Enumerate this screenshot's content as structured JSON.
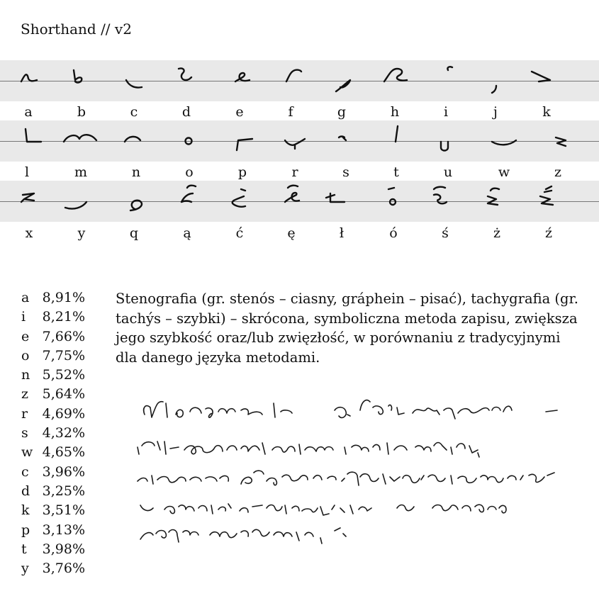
{
  "title": "Shorthand // v2",
  "rows": [
    [
      "a",
      "b",
      "c",
      "d",
      "e",
      "f",
      "g",
      "h",
      "i",
      "j",
      "k"
    ],
    [
      "l",
      "m",
      "n",
      "o",
      "p",
      "r",
      "s",
      "t",
      "u",
      "w",
      "z"
    ],
    [
      "x",
      "y",
      "q",
      "ą",
      "ć",
      "ę",
      "ł",
      "ó",
      "ś",
      "ż",
      "ź"
    ]
  ],
  "frequencies": [
    {
      "letter": "a",
      "value": "8,91%"
    },
    {
      "letter": "i",
      "value": "8,21%"
    },
    {
      "letter": "e",
      "value": "7,66%"
    },
    {
      "letter": "o",
      "value": "7,75%"
    },
    {
      "letter": "n",
      "value": "5,52%"
    },
    {
      "letter": "z",
      "value": "5,64%"
    },
    {
      "letter": "r",
      "value": "4,69%"
    },
    {
      "letter": "s",
      "value": "4,32%"
    },
    {
      "letter": "w",
      "value": "4,65%"
    },
    {
      "letter": "c",
      "value": "3,96%"
    },
    {
      "letter": "d",
      "value": "3,25%"
    },
    {
      "letter": "k",
      "value": "3,51%"
    },
    {
      "letter": "p",
      "value": "3,13%"
    },
    {
      "letter": "t",
      "value": "3,98%"
    },
    {
      "letter": "y",
      "value": "3,76%"
    }
  ],
  "paragraph": "Stenografia (gr. stenós – ciasny, gráphein – pisać), tachygrafia (gr. tachýs – szybki) – skrócona, symboliczna metoda zapisu, zwiększa jego szybkość oraz/lub zwięzłość, w porównaniu z tradycyjnymi dla danego języka metodami."
}
